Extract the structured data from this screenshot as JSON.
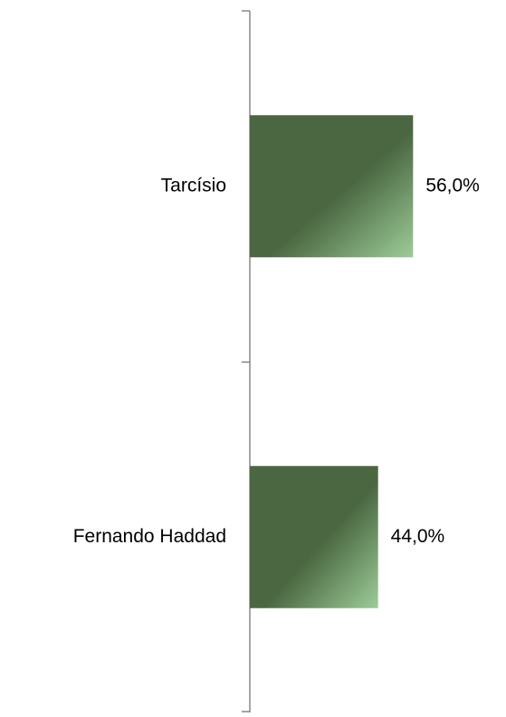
{
  "chart_data": {
    "type": "bar",
    "orientation": "horizontal",
    "categories": [
      "Tarcísio",
      "Fernando Haddad"
    ],
    "values": [
      56,
      44
    ],
    "value_labels": [
      "56,0%",
      "44,0%"
    ],
    "color": "#4a6741"
  }
}
